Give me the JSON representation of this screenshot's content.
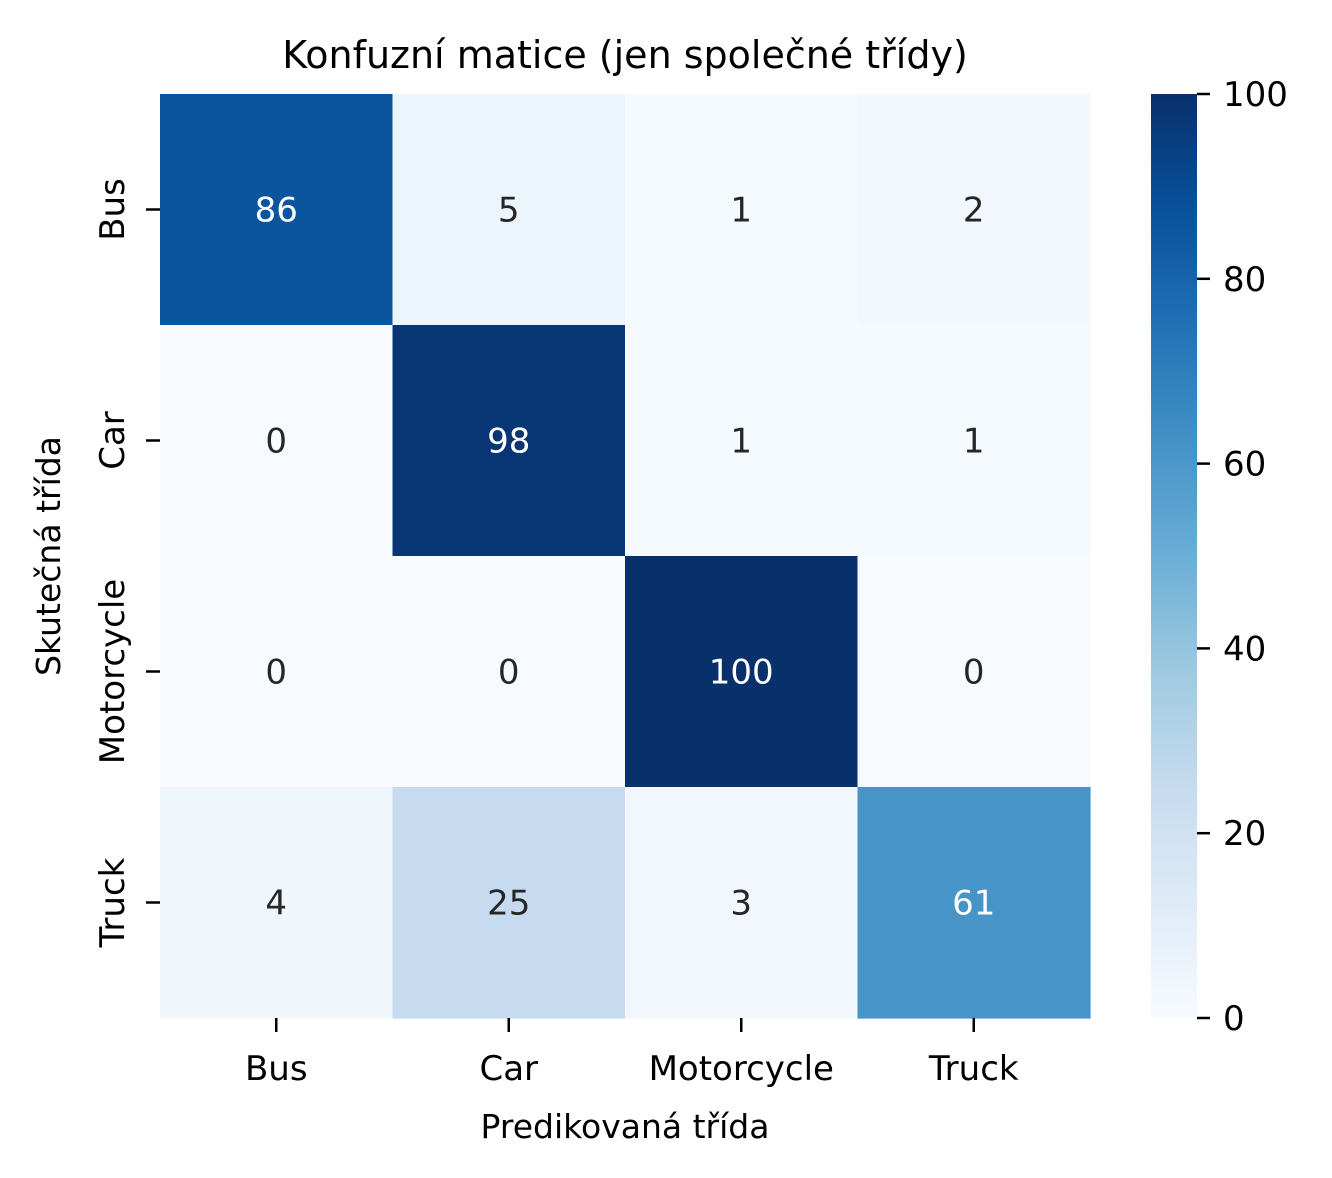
{
  "chart_data": {
    "type": "heatmap",
    "title": "Konfuzní matice (jen společné třídy)",
    "xlabel": "Predikovaná třída",
    "ylabel": "Skutečná třída",
    "x_categories": [
      "Bus",
      "Car",
      "Motorcycle",
      "Truck"
    ],
    "y_categories": [
      "Bus",
      "Car",
      "Motorcycle",
      "Truck"
    ],
    "values": [
      [
        86,
        5,
        1,
        2
      ],
      [
        0,
        98,
        1,
        1
      ],
      [
        0,
        0,
        100,
        0
      ],
      [
        4,
        25,
        3,
        61
      ]
    ],
    "colorbar": {
      "range": [
        0,
        100
      ],
      "ticks": [
        0,
        20,
        40,
        60,
        80,
        100
      ],
      "colormap": "Blues"
    },
    "colors": {
      "scale": [
        "#f7fbff",
        "#deebf7",
        "#c6dbef",
        "#9ecae1",
        "#6baed6",
        "#4292c6",
        "#2171b5",
        "#08519c",
        "#08306b"
      ],
      "dark_text": "#262626",
      "light_text": "#ffffff"
    }
  }
}
